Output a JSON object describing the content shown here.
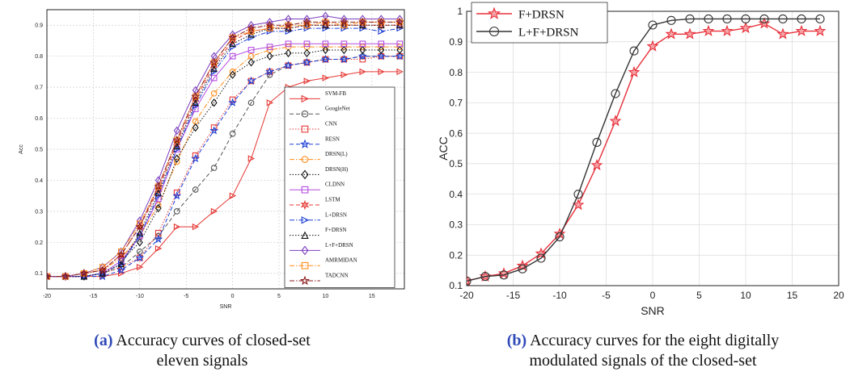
{
  "chart_data": [
    {
      "type": "line",
      "xlabel": "SNR",
      "ylabel": "Acc",
      "xlim": [
        -20,
        18.5
      ],
      "ylim": [
        0.05,
        0.95
      ],
      "xticks": [
        -20,
        -15,
        -10,
        -5,
        0,
        5,
        10,
        15
      ],
      "yticks": [
        0.1,
        0.2,
        0.3,
        0.4,
        0.5,
        0.6,
        0.7,
        0.8,
        0.9
      ],
      "grid": true,
      "legend_position": "right",
      "x": [
        -20,
        -18,
        -16,
        -14,
        -12,
        -10,
        -8,
        -6,
        -4,
        -2,
        0,
        2,
        4,
        6,
        8,
        10,
        12,
        14,
        16,
        18
      ],
      "series": [
        {
          "name": "SVM-FB",
          "color": "#e53935",
          "marker": "triangle-right",
          "dash": "solid",
          "values": [
            0.09,
            0.09,
            0.09,
            0.09,
            0.1,
            0.12,
            0.18,
            0.25,
            0.25,
            0.3,
            0.35,
            0.47,
            0.65,
            0.7,
            0.72,
            0.73,
            0.74,
            0.75,
            0.75,
            0.75
          ]
        },
        {
          "name": "GoogleNet",
          "color": "#555555",
          "marker": "circle",
          "dash": "dashed",
          "values": [
            0.09,
            0.09,
            0.09,
            0.1,
            0.12,
            0.17,
            0.22,
            0.3,
            0.37,
            0.44,
            0.55,
            0.65,
            0.74,
            0.77,
            0.78,
            0.79,
            0.79,
            0.8,
            0.8,
            0.8
          ]
        },
        {
          "name": "CNN",
          "color": "#e53935",
          "marker": "square",
          "dash": "dotted",
          "values": [
            0.09,
            0.09,
            0.09,
            0.1,
            0.12,
            0.15,
            0.23,
            0.36,
            0.48,
            0.57,
            0.66,
            0.72,
            0.75,
            0.77,
            0.78,
            0.79,
            0.79,
            0.79,
            0.8,
            0.8
          ]
        },
        {
          "name": "RESN",
          "color": "#1e3fd6",
          "marker": "star",
          "dash": "dashed",
          "values": [
            0.09,
            0.09,
            0.09,
            0.09,
            0.11,
            0.15,
            0.21,
            0.35,
            0.47,
            0.56,
            0.65,
            0.72,
            0.75,
            0.77,
            0.78,
            0.79,
            0.79,
            0.8,
            0.8,
            0.8
          ]
        },
        {
          "name": "DRSN(L)",
          "color": "#ff8c1a",
          "marker": "circle",
          "dash": "dashdot",
          "values": [
            0.09,
            0.09,
            0.1,
            0.11,
            0.15,
            0.22,
            0.32,
            0.46,
            0.59,
            0.68,
            0.75,
            0.8,
            0.82,
            0.83,
            0.83,
            0.83,
            0.83,
            0.83,
            0.83,
            0.83
          ]
        },
        {
          "name": "DRSN(H)",
          "color": "#111111",
          "marker": "diamond",
          "dash": "dotted",
          "values": [
            0.09,
            0.09,
            0.09,
            0.1,
            0.14,
            0.2,
            0.31,
            0.47,
            0.57,
            0.65,
            0.74,
            0.78,
            0.8,
            0.81,
            0.81,
            0.82,
            0.82,
            0.82,
            0.82,
            0.82
          ]
        },
        {
          "name": "CLDNN",
          "color": "#b44de0",
          "marker": "square",
          "dash": "solid",
          "values": [
            0.09,
            0.09,
            0.09,
            0.1,
            0.14,
            0.22,
            0.34,
            0.5,
            0.63,
            0.73,
            0.8,
            0.82,
            0.83,
            0.84,
            0.84,
            0.84,
            0.84,
            0.84,
            0.84,
            0.84
          ]
        },
        {
          "name": "LSTM",
          "color": "#e53935",
          "marker": "star6",
          "dash": "dashed",
          "values": [
            0.09,
            0.09,
            0.1,
            0.11,
            0.16,
            0.25,
            0.37,
            0.52,
            0.66,
            0.77,
            0.85,
            0.88,
            0.89,
            0.89,
            0.9,
            0.9,
            0.9,
            0.9,
            0.9,
            0.9
          ]
        },
        {
          "name": "L+DRSN",
          "color": "#1e3fd6",
          "marker": "triangle-right",
          "dash": "dashdot",
          "values": [
            0.09,
            0.09,
            0.09,
            0.1,
            0.13,
            0.22,
            0.35,
            0.5,
            0.64,
            0.75,
            0.83,
            0.86,
            0.88,
            0.88,
            0.89,
            0.89,
            0.89,
            0.89,
            0.88,
            0.89
          ]
        },
        {
          "name": "F+DRSN",
          "color": "#111111",
          "marker": "triangle-up",
          "dash": "dotted",
          "values": [
            0.09,
            0.09,
            0.09,
            0.1,
            0.13,
            0.23,
            0.36,
            0.51,
            0.65,
            0.76,
            0.84,
            0.87,
            0.89,
            0.89,
            0.9,
            0.9,
            0.9,
            0.9,
            0.9,
            0.9
          ]
        },
        {
          "name": "L+F+DRSN",
          "color": "#7b3fbf",
          "marker": "diamond",
          "dash": "solid",
          "values": [
            0.09,
            0.09,
            0.1,
            0.12,
            0.17,
            0.27,
            0.4,
            0.56,
            0.69,
            0.8,
            0.87,
            0.9,
            0.91,
            0.92,
            0.92,
            0.93,
            0.92,
            0.92,
            0.92,
            0.92
          ]
        },
        {
          "name": "AMRMIDAN",
          "color": "#ff8c1a",
          "marker": "square",
          "dash": "dashdot",
          "values": [
            0.09,
            0.09,
            0.1,
            0.12,
            0.17,
            0.26,
            0.38,
            0.53,
            0.67,
            0.78,
            0.86,
            0.88,
            0.89,
            0.9,
            0.9,
            0.91,
            0.9,
            0.91,
            0.91,
            0.91
          ]
        },
        {
          "name": "TADCNN",
          "color": "#8b1a1a",
          "marker": "star",
          "dash": "dashdot",
          "values": [
            0.09,
            0.09,
            0.1,
            0.11,
            0.16,
            0.25,
            0.38,
            0.53,
            0.67,
            0.78,
            0.86,
            0.89,
            0.9,
            0.9,
            0.91,
            0.91,
            0.91,
            0.91,
            0.91,
            0.91
          ]
        }
      ]
    },
    {
      "type": "line",
      "xlabel": "SNR",
      "ylabel": "ACC",
      "xlim": [
        -20,
        20
      ],
      "ylim": [
        0.1,
        1
      ],
      "xticks": [
        -20,
        -15,
        -10,
        -5,
        0,
        5,
        10,
        15,
        20
      ],
      "yticks": [
        0.1,
        0.2,
        0.3,
        0.4,
        0.5,
        0.6,
        0.7,
        0.8,
        0.9,
        1
      ],
      "grid": true,
      "legend_position": "top-left",
      "x": [
        -20,
        -18,
        -16,
        -14,
        -12,
        -10,
        -8,
        -6,
        -4,
        -2,
        0,
        2,
        4,
        6,
        8,
        10,
        12,
        14,
        16,
        18
      ],
      "series": [
        {
          "name": "F+DRSN",
          "color": "#e8303a",
          "marker": "star",
          "dash": "solid",
          "values": [
            0.115,
            0.13,
            0.14,
            0.165,
            0.205,
            0.27,
            0.365,
            0.495,
            0.64,
            0.8,
            0.885,
            0.925,
            0.925,
            0.935,
            0.935,
            0.945,
            0.96,
            0.925,
            0.935,
            0.935
          ]
        },
        {
          "name": "L+F+DRSN",
          "color": "#333333",
          "marker": "circle",
          "dash": "solid",
          "values": [
            0.115,
            0.13,
            0.135,
            0.155,
            0.19,
            0.26,
            0.4,
            0.57,
            0.73,
            0.87,
            0.955,
            0.97,
            0.975,
            0.975,
            0.975,
            0.975,
            0.975,
            0.975,
            0.975,
            0.975
          ]
        }
      ]
    }
  ],
  "captions": [
    {
      "tag": "(a)",
      "line1": "Accuracy curves of closed-set",
      "line2": "eleven signals"
    },
    {
      "tag": "(b)",
      "line1": "Accuracy curves for the eight digitally",
      "line2": "modulated signals of the closed-set"
    }
  ]
}
